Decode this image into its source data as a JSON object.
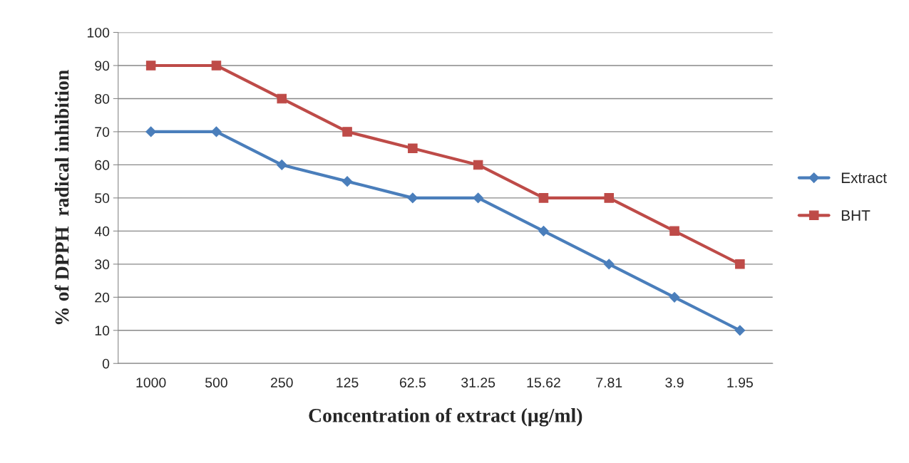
{
  "chart_data": {
    "type": "line",
    "xlabel": "Concentration of extract (µg/ml)",
    "ylabel": "% of DPPH  radical inhibition",
    "categories": [
      "1000",
      "500",
      "250",
      "125",
      "62.5",
      "31.25",
      "15.62",
      "7.81",
      "3.9",
      "1.95"
    ],
    "series": [
      {
        "name": "Extract",
        "color": "#4a7ebb",
        "marker": "diamond",
        "values": [
          70,
          70,
          60,
          55,
          50,
          50,
          40,
          30,
          20,
          10
        ]
      },
      {
        "name": "BHT",
        "color": "#be4b48",
        "marker": "square",
        "values": [
          90,
          90,
          80,
          70,
          65,
          60,
          50,
          50,
          40,
          30
        ]
      }
    ],
    "ylim": [
      0,
      100
    ],
    "yticks": [
      0,
      10,
      20,
      30,
      40,
      50,
      60,
      70,
      80,
      90,
      100
    ],
    "grid": "y",
    "legend": "right",
    "line_style": "solid"
  }
}
